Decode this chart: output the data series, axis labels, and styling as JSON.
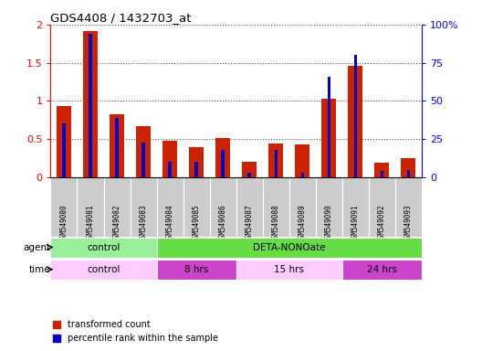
{
  "title": "GDS4408 / 1432703_at",
  "samples": [
    "GSM549080",
    "GSM549081",
    "GSM549082",
    "GSM549083",
    "GSM549084",
    "GSM549085",
    "GSM549086",
    "GSM549087",
    "GSM549088",
    "GSM549089",
    "GSM549090",
    "GSM549091",
    "GSM549092",
    "GSM549093"
  ],
  "red_values": [
    0.93,
    1.92,
    0.83,
    0.67,
    0.48,
    0.4,
    0.52,
    0.2,
    0.44,
    0.43,
    1.03,
    1.46,
    0.19,
    0.25
  ],
  "blue_percentile": [
    35,
    94,
    39,
    23,
    10,
    10,
    18,
    3,
    18,
    3,
    66,
    80,
    4,
    5
  ],
  "ylim_left": [
    0,
    2
  ],
  "ylim_right": [
    0,
    100
  ],
  "yticks_left": [
    0,
    0.5,
    1.0,
    1.5,
    2.0
  ],
  "yticks_right": [
    0,
    25,
    50,
    75,
    100
  ],
  "ytick_labels_left": [
    "0",
    "0.5",
    "1",
    "1.5",
    "2"
  ],
  "ytick_labels_right": [
    "0",
    "25",
    "50",
    "75",
    "100%"
  ],
  "bar_color_red": "#cc2200",
  "bar_color_blue": "#0000cc",
  "agent_row": [
    {
      "label": "control",
      "start": 0,
      "end": 4,
      "color": "#99ee99"
    },
    {
      "label": "DETA-NONOate",
      "start": 4,
      "end": 14,
      "color": "#66dd44"
    }
  ],
  "time_row": [
    {
      "label": "control",
      "start": 0,
      "end": 4,
      "color": "#ffccff"
    },
    {
      "label": "8 hrs",
      "start": 4,
      "end": 7,
      "color": "#cc44cc"
    },
    {
      "label": "15 hrs",
      "start": 7,
      "end": 11,
      "color": "#ffccff"
    },
    {
      "label": "24 hrs",
      "start": 11,
      "end": 14,
      "color": "#cc44cc"
    }
  ],
  "legend_red_label": "transformed count",
  "legend_blue_label": "percentile rank within the sample",
  "background_color": "#ffffff",
  "grid_color": "#555555",
  "red_bar_width": 0.55,
  "blue_bar_width": 0.12,
  "label_bg_color": "#cccccc",
  "label_line_color": "#aaaaaa"
}
